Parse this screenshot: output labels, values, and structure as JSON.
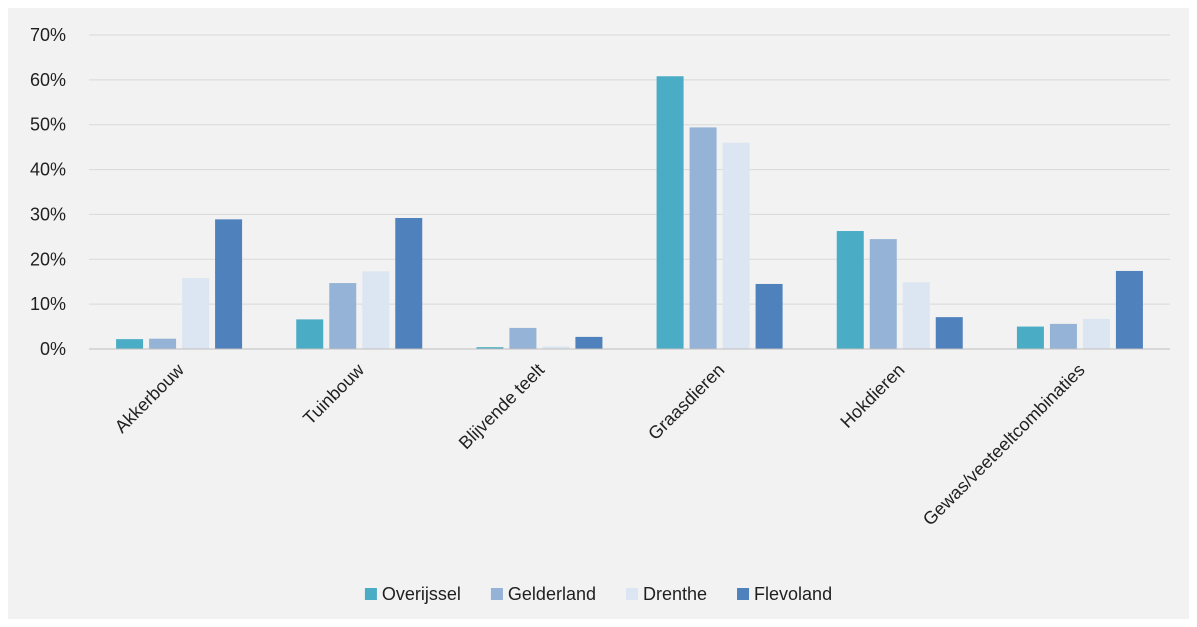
{
  "chart_data": {
    "type": "bar",
    "categories": [
      "Akkerbouw",
      "Tuinbouw",
      "Blijvende teelt",
      "Graasdieren",
      "Hokdieren",
      "Gewas/veeteeltcombinaties"
    ],
    "series": [
      {
        "name": "Overijssel",
        "color": "#4bacc6",
        "values": [
          2.2,
          6.6,
          0.4,
          60.8,
          26.3,
          5.0
        ]
      },
      {
        "name": "Gelderland",
        "color": "#95b3d7",
        "values": [
          2.3,
          14.7,
          4.7,
          49.4,
          24.5,
          5.6
        ]
      },
      {
        "name": "Drenthe",
        "color": "#dce6f2",
        "values": [
          15.8,
          17.3,
          0.6,
          46.0,
          14.9,
          6.7
        ]
      },
      {
        "name": "Flevoland",
        "color": "#4f81bd",
        "values": [
          28.9,
          29.2,
          2.7,
          14.5,
          7.1,
          17.4
        ]
      }
    ],
    "y_ticks": [
      "0%",
      "10%",
      "20%",
      "30%",
      "40%",
      "50%",
      "60%",
      "70%"
    ],
    "ylim": [
      0,
      70
    ],
    "ylabel": "",
    "xlabel": "",
    "grid": true,
    "legend_position": "bottom"
  }
}
